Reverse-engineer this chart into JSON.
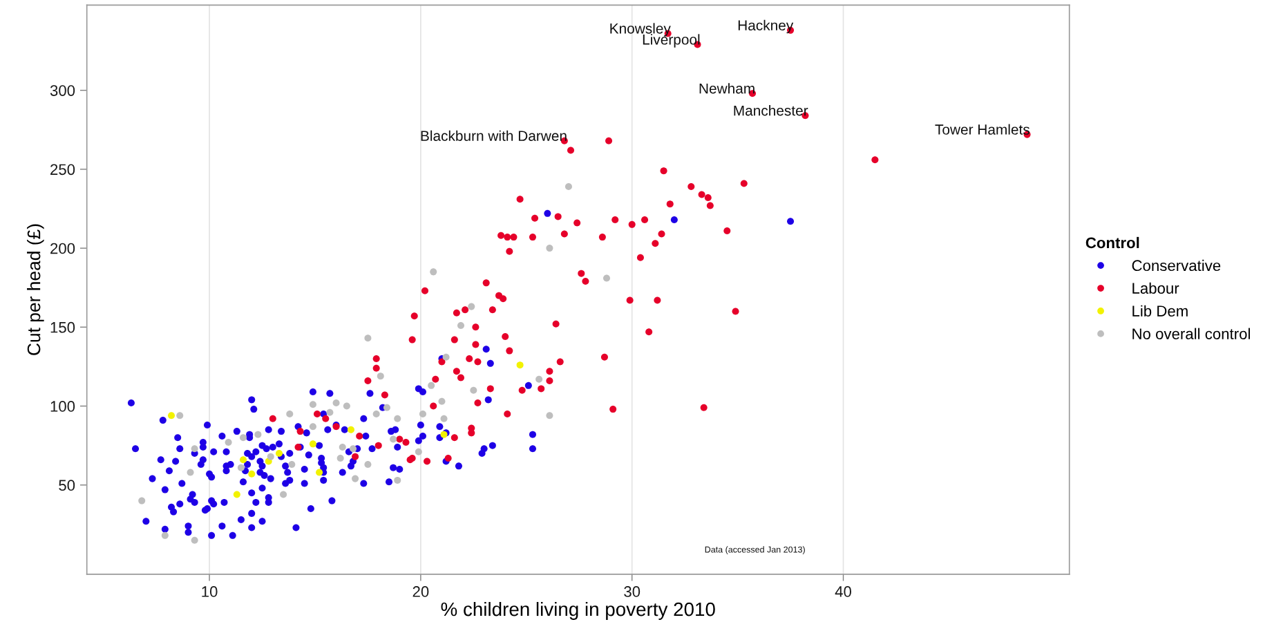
{
  "chart_data": {
    "type": "scatter",
    "xlabel": "% children living in poverty 2010",
    "ylabel": "Cut per head (£)",
    "legend_title": "Control",
    "xlim": [
      4.2,
      50.7
    ],
    "ylim": [
      -6.5,
      354
    ],
    "xticks": [
      10,
      20,
      30,
      40
    ],
    "yticks": [
      50,
      100,
      150,
      200,
      250,
      300
    ],
    "grid": "x",
    "legend": "right",
    "marker": "circle",
    "series": [
      {
        "name": "Conservative",
        "color": "#1e00e6",
        "x": [
          6.3,
          6.5,
          7.8,
          8.5,
          8.6,
          7.7,
          8.4,
          8.1,
          7.3,
          8.7,
          7.9,
          7.0,
          7.9,
          9.0,
          9.0,
          8.2,
          8.3,
          8.6,
          9.2,
          9.1,
          9.3,
          9.3,
          9.9,
          9.7,
          9.7,
          9.7,
          9.6,
          10.0,
          10.1,
          10.2,
          10.6,
          10.8,
          10.8,
          10.8,
          11.0,
          11.3,
          11.9,
          11.9,
          12.0,
          12.1,
          12.8,
          13.4,
          12.5,
          12.7,
          13.0,
          13.3,
          12.2,
          11.8,
          12.0,
          11.8,
          11.7,
          12.4,
          12.5,
          12.4,
          12.6,
          12.9,
          11.6,
          12.0,
          12.5,
          12.2,
          12.8,
          12.8,
          12.0,
          11.5,
          12.0,
          12.5,
          10.6,
          11.1,
          10.1,
          9.8,
          9.9,
          10.1,
          10.2,
          10.7,
          13.4,
          13.8,
          13.6,
          13.7,
          13.8,
          13.6,
          14.9,
          15.7,
          14.2,
          14.6,
          14.3,
          15.2,
          14.7,
          15.3,
          15.3,
          15.4,
          15.4,
          14.5,
          14.5,
          15.4,
          14.8,
          15.8,
          14.1,
          15.6,
          16.0,
          16.4,
          16.6,
          16.7,
          16.8,
          17.0,
          16.3,
          17.3,
          17.3,
          17.6,
          17.4,
          17.7,
          15.4,
          23.1,
          23.3,
          19.9,
          20.1,
          18.2,
          23.2,
          25.1,
          20.0,
          20.9,
          18.6,
          18.8,
          20.1,
          19.9,
          20.9,
          21.2,
          18.9,
          21.2,
          21.8,
          18.7,
          19.0,
          18.5,
          23.0,
          22.9,
          23.4,
          25.3,
          25.3,
          21.0,
          26.0,
          32.0,
          37.5
        ],
        "values": [
          102,
          73,
          91,
          80,
          73,
          66,
          65,
          59,
          54,
          51,
          47,
          27,
          22,
          24,
          20,
          36,
          33,
          38,
          44,
          41,
          39,
          70,
          88,
          77,
          74,
          66,
          63,
          57,
          55,
          71,
          81,
          71,
          59,
          62,
          63,
          84,
          82,
          80,
          104,
          98,
          85,
          84,
          75,
          73,
          74,
          76,
          71,
          70,
          68,
          63,
          59,
          65,
          62,
          58,
          56,
          54,
          52,
          45,
          48,
          39,
          42,
          39,
          32,
          28,
          23,
          27,
          24,
          18,
          18,
          34,
          35,
          40,
          38,
          39,
          68,
          70,
          62,
          58,
          53,
          51,
          109,
          108,
          87,
          83,
          74,
          75,
          69,
          67,
          64,
          61,
          58,
          60,
          51,
          53,
          35,
          40,
          23,
          85,
          88,
          85,
          71,
          62,
          65,
          73,
          58,
          51,
          92,
          108,
          81,
          73,
          95,
          136,
          127,
          111,
          109,
          99,
          104,
          113,
          88,
          87,
          84,
          85,
          81,
          78,
          80,
          83,
          74,
          65,
          62,
          61,
          60,
          52,
          73,
          70,
          75,
          82,
          73,
          130,
          222,
          218,
          217
        ]
      },
      {
        "name": "Labour",
        "color": "#e6002a",
        "x": [
          13.0,
          14.3,
          14.2,
          15.1,
          15.5,
          16.0,
          16.9,
          17.1,
          17.5,
          20.2,
          23.1,
          19.7,
          19.6,
          21.7,
          22.1,
          23.7,
          23.9,
          23.4,
          22.6,
          21.6,
          22.6,
          24.0,
          24.2,
          22.3,
          22.7,
          21.0,
          21.7,
          21.9,
          20.7,
          17.9,
          17.9,
          18.3,
          18.0,
          23.3,
          22.7,
          20.6,
          24.1,
          22.4,
          22.4,
          21.6,
          19.0,
          19.3,
          19.6,
          19.5,
          20.3,
          21.3,
          24.8,
          25.7,
          26.1,
          26.1,
          26.4,
          26.6,
          28.7,
          29.1,
          30.8,
          29.9,
          31.2,
          33.4,
          27.6,
          27.8,
          34.9,
          31.7,
          33.1,
          26.8,
          27.1,
          28.9,
          31.5,
          32.8,
          33.3,
          33.6,
          33.7,
          31.8,
          34.5,
          24.7,
          25.4,
          26.5,
          27.4,
          26.8,
          25.3,
          23.8,
          24.1,
          24.4,
          24.2,
          28.6,
          29.2,
          30.0,
          30.6,
          31.4,
          31.1,
          30.4,
          37.5,
          35.7,
          38.2,
          48.7,
          41.5,
          35.3
        ],
        "values": [
          92,
          84,
          74,
          95,
          92,
          87,
          68,
          81,
          116,
          173,
          178,
          157,
          142,
          159,
          161,
          170,
          168,
          161,
          150,
          142,
          139,
          144,
          135,
          130,
          128,
          128,
          122,
          118,
          117,
          130,
          124,
          107,
          75,
          111,
          102,
          100,
          95,
          86,
          83,
          80,
          79,
          77,
          67,
          66,
          65,
          67,
          110,
          111,
          122,
          116,
          152,
          128,
          131,
          98,
          147,
          167,
          167,
          99,
          184,
          179,
          160,
          336,
          329,
          268,
          262,
          268,
          249,
          239,
          234,
          232,
          227,
          228,
          211,
          231,
          219,
          220,
          216,
          209,
          207,
          208,
          207,
          207,
          198,
          207,
          218,
          215,
          218,
          209,
          203,
          194,
          338,
          298,
          284,
          272,
          256,
          241
        ]
      },
      {
        "name": "Lib Dem",
        "color": "#f2f200",
        "x": [
          8.2,
          11.6,
          12.0,
          12.8,
          11.3,
          13.3,
          14.9,
          15.2,
          16.7,
          24.7,
          21.1
        ],
        "values": [
          94,
          66,
          57,
          65,
          44,
          70,
          76,
          58,
          85,
          126,
          82
        ]
      },
      {
        "name": "No overall control",
        "color": "#bebebe",
        "x": [
          8.6,
          9.3,
          9.1,
          6.8,
          7.9,
          9.3,
          10.9,
          11.6,
          12.3,
          11.5,
          12.9,
          13.9,
          13.5,
          13.8,
          14.9,
          14.9,
          15.7,
          16.0,
          16.5,
          16.3,
          16.8,
          16.2,
          16.9,
          17.5,
          17.5,
          20.6,
          28.8,
          22.4,
          21.9,
          18.1,
          20.5,
          22.5,
          21.0,
          17.9,
          18.4,
          18.9,
          20.1,
          21.1,
          19.9,
          18.9,
          25.6,
          26.1,
          18.7,
          21.2,
          27.0,
          26.1
        ],
        "values": [
          94,
          73,
          58,
          40,
          18,
          15,
          77,
          80,
          82,
          61,
          68,
          63,
          44,
          95,
          101,
          87,
          96,
          102,
          100,
          74,
          73,
          67,
          54,
          143,
          63,
          185,
          181,
          163,
          151,
          119,
          113,
          110,
          103,
          95,
          99,
          92,
          95,
          92,
          71,
          53,
          117,
          94,
          79,
          131,
          239,
          200
        ]
      }
    ],
    "annotations": [
      {
        "text": "Knowsley",
        "x": 31.7,
        "y": 336
      },
      {
        "text": "Hackney",
        "x": 37.5,
        "y": 338
      },
      {
        "text": "Liverpool",
        "x": 33.1,
        "y": 329
      },
      {
        "text": "Newham",
        "x": 35.7,
        "y": 298
      },
      {
        "text": "Manchester",
        "x": 38.2,
        "y": 284
      },
      {
        "text": "Tower Hamlets",
        "x": 48.7,
        "y": 272
      },
      {
        "text": "Blackburn with Darwen",
        "x": 26.8,
        "y": 268
      },
      "Data (accessed Jan 2013)"
    ]
  }
}
